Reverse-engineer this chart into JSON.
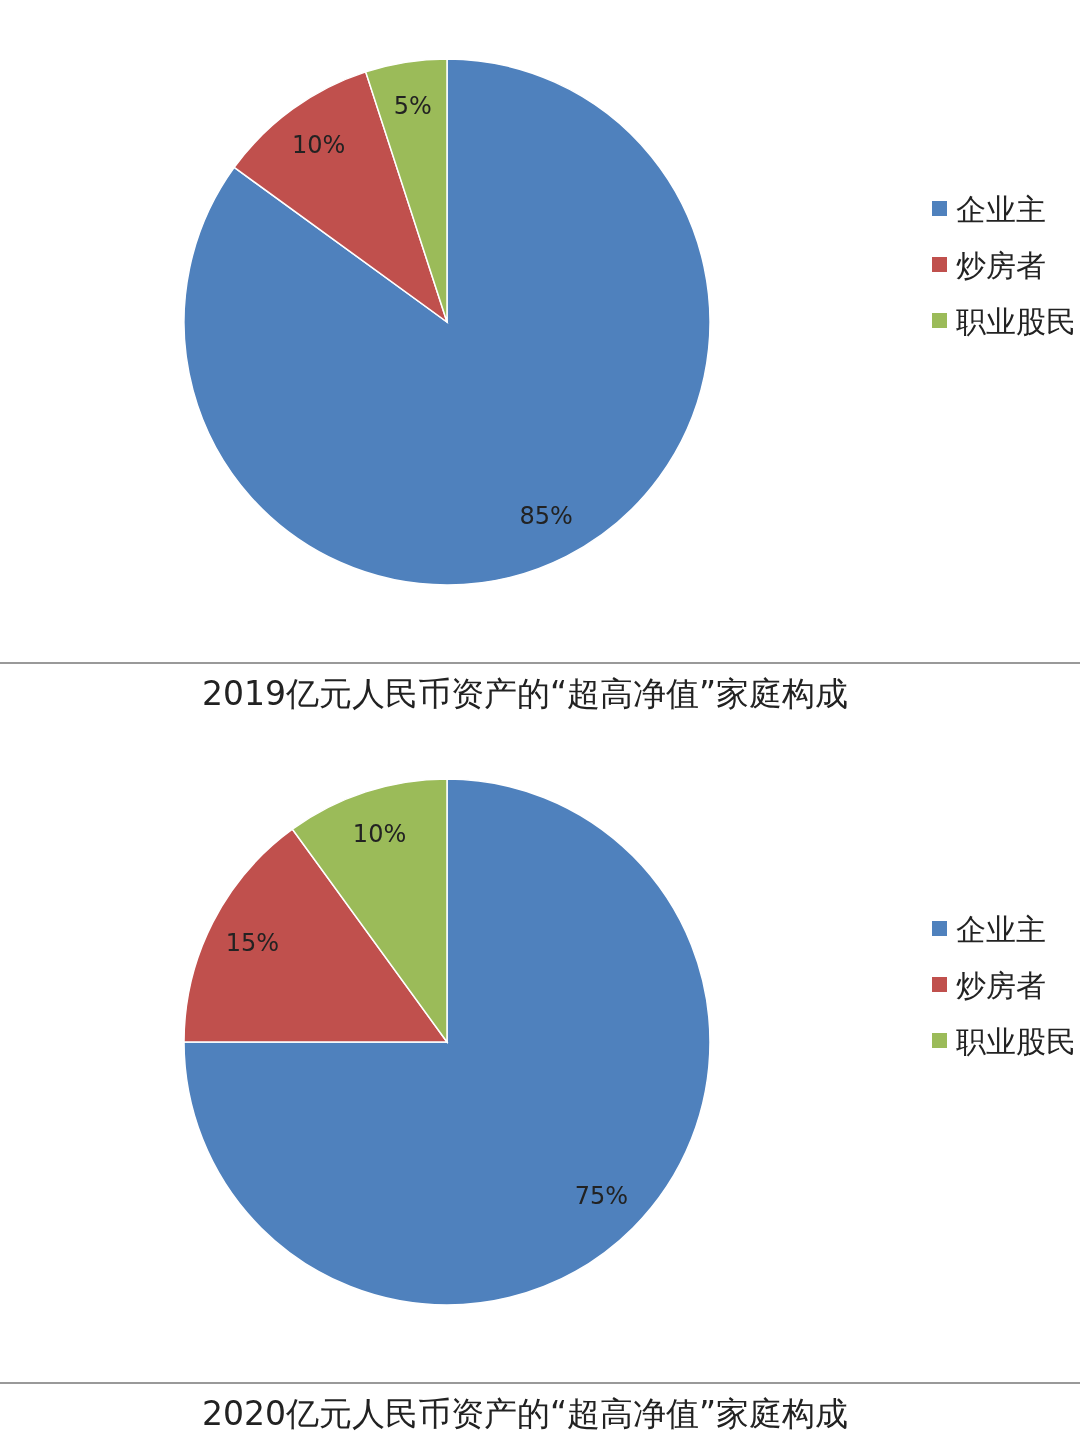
{
  "chart_data": [
    {
      "type": "pie",
      "title": "2019亿元人民币资产的“超高净值”家庭构成",
      "categories": [
        "企业主",
        "炒房者",
        "职业股民"
      ],
      "values": [
        85,
        10,
        5
      ],
      "value_labels": [
        "85%",
        "10%",
        "5%"
      ],
      "colors": [
        "#4f81bd",
        "#c0504d",
        "#9bbb59"
      ],
      "legend": "right"
    },
    {
      "type": "pie",
      "title": "2020亿元人民币资产的“超高净值”家庭构成",
      "categories": [
        "企业主",
        "炒房者",
        "职业股民"
      ],
      "values": [
        75,
        15,
        10
      ],
      "value_labels": [
        "75%",
        "15%",
        "10%"
      ],
      "colors": [
        "#4f81bd",
        "#c0504d",
        "#9bbb59"
      ],
      "legend": "right"
    }
  ]
}
